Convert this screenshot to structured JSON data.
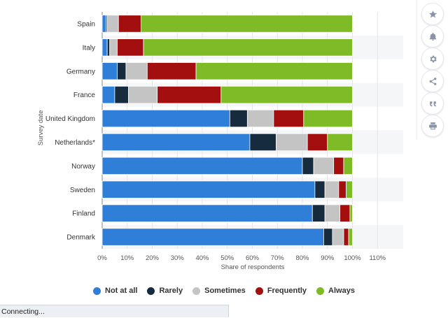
{
  "chart_data": {
    "type": "bar",
    "orientation": "horizontal",
    "stacked": true,
    "ylabel": "Survey date",
    "xlabel": "Share of respondents",
    "categories": [
      "Spain",
      "Italy",
      "Germany",
      "France",
      "United Kingdom",
      "Netherlands*",
      "Norway",
      "Sweden",
      "Finland",
      "Denmark"
    ],
    "x_ticks": [
      "0%",
      "10%",
      "20%",
      "30%",
      "40%",
      "50%",
      "60%",
      "70%",
      "80%",
      "90%",
      "100%",
      "110%"
    ],
    "xlim": [
      0,
      110
    ],
    "grid": true,
    "legend_position": "bottom",
    "series": [
      {
        "name": "Not at all",
        "color": "#2f7ed8",
        "values": [
          1.5,
          2,
          6,
          5,
          51,
          59,
          80,
          85,
          84,
          88.5
        ]
      },
      {
        "name": "Rarely",
        "color": "#172b3f",
        "values": [
          0.5,
          1,
          3.5,
          5.5,
          7,
          10.5,
          4.5,
          4,
          5,
          3.5
        ]
      },
      {
        "name": "Sometimes",
        "color": "#c4c4c4",
        "values": [
          4.5,
          3,
          8.5,
          11.5,
          10.5,
          12.5,
          8,
          5.5,
          6,
          4.5
        ]
      },
      {
        "name": "Frequently",
        "color": "#a30f0f",
        "values": [
          9,
          10.5,
          19.5,
          25.5,
          12,
          8,
          4,
          3,
          4,
          2
        ]
      },
      {
        "name": "Always",
        "color": "#7fba27",
        "values": [
          84.5,
          83.5,
          62.5,
          52.5,
          19.5,
          10,
          3.5,
          2.5,
          1,
          1.5
        ]
      }
    ]
  },
  "status_text": "Connecting...",
  "sidebar_icons": [
    "star-icon",
    "bell-icon",
    "gear-icon",
    "share-icon",
    "quote-icon",
    "print-icon"
  ]
}
